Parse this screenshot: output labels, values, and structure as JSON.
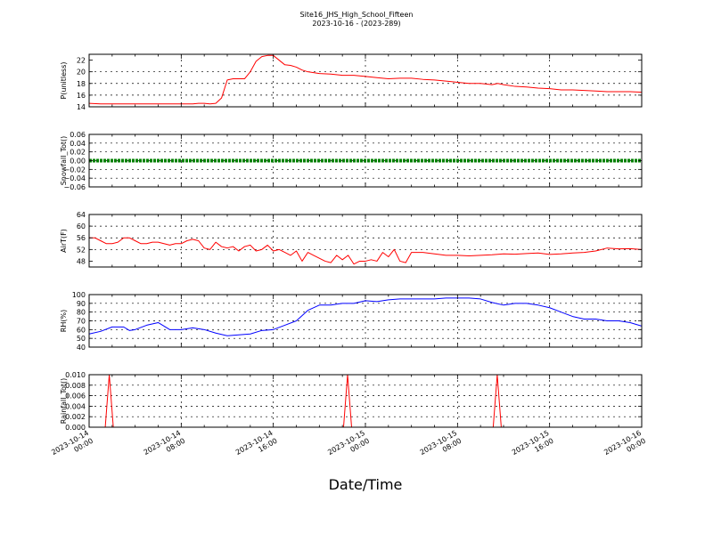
{
  "figure": {
    "title": "Site16_JHS_High_School_Fifteen",
    "subtitle": "2023-10-16 - (2023-289)",
    "xlabel": "Date/Time"
  },
  "chart_data": [
    {
      "type": "line",
      "ylabel": "P(unitless)",
      "ylim": [
        14,
        23
      ],
      "yticks": [
        14,
        16,
        18,
        20,
        22
      ],
      "ytick_labels": [
        "14",
        "16",
        "18",
        "20",
        "22"
      ],
      "grid": true,
      "series": [
        {
          "color": "#ff0000",
          "points": [
            [
              0,
              14.6
            ],
            [
              1,
              14.5
            ],
            [
              2,
              14.5
            ],
            [
              3,
              14.5
            ],
            [
              4,
              14.5
            ],
            [
              5,
              14.5
            ],
            [
              6,
              14.5
            ],
            [
              7,
              14.5
            ],
            [
              8,
              14.5
            ],
            [
              9,
              14.5
            ],
            [
              9.5,
              14.6
            ],
            [
              10,
              14.6
            ],
            [
              10.5,
              14.5
            ],
            [
              11,
              14.6
            ],
            [
              11.5,
              15.5
            ],
            [
              12,
              18.6
            ],
            [
              12.5,
              18.8
            ],
            [
              13,
              18.8
            ],
            [
              13.5,
              18.8
            ],
            [
              14,
              20.0
            ],
            [
              14.5,
              21.8
            ],
            [
              15,
              22.6
            ],
            [
              15.5,
              22.8
            ],
            [
              16,
              22.8
            ],
            [
              16.5,
              22.0
            ],
            [
              17,
              21.2
            ],
            [
              17.5,
              21.1
            ],
            [
              18,
              20.8
            ],
            [
              18.5,
              20.3
            ],
            [
              19,
              20.0
            ],
            [
              20,
              19.7
            ],
            [
              21,
              19.6
            ],
            [
              22,
              19.4
            ],
            [
              23,
              19.4
            ],
            [
              24,
              19.2
            ],
            [
              25,
              19.0
            ],
            [
              26,
              18.8
            ],
            [
              27,
              18.9
            ],
            [
              28,
              18.9
            ],
            [
              29,
              18.7
            ],
            [
              30,
              18.6
            ],
            [
              31,
              18.4
            ],
            [
              32,
              18.2
            ],
            [
              33,
              18.0
            ],
            [
              34,
              18.0
            ],
            [
              35,
              17.8
            ],
            [
              35.5,
              18.0
            ],
            [
              36,
              17.8
            ],
            [
              37,
              17.5
            ],
            [
              38,
              17.4
            ],
            [
              39,
              17.2
            ],
            [
              40,
              17.1
            ],
            [
              41,
              16.9
            ],
            [
              42,
              16.9
            ],
            [
              43,
              16.8
            ],
            [
              44,
              16.7
            ],
            [
              45,
              16.6
            ],
            [
              46,
              16.6
            ],
            [
              47,
              16.6
            ],
            [
              48,
              16.5
            ]
          ]
        }
      ]
    },
    {
      "type": "line",
      "ylabel": "Snowfall_Tot()",
      "ylim": [
        -0.06,
        0.06
      ],
      "yticks": [
        -0.06,
        -0.04,
        -0.02,
        0.0,
        0.02,
        0.04,
        0.06
      ],
      "ytick_labels": [
        "−0.06",
        "−0.04",
        "−0.02",
        "0.00",
        "0.02",
        "0.04",
        "0.06"
      ],
      "grid": true,
      "series": [
        {
          "color": "#008000",
          "points": [
            [
              0,
              0
            ],
            [
              48,
              0
            ]
          ]
        }
      ]
    },
    {
      "type": "line",
      "ylabel": "AirT(F)",
      "ylim": [
        46,
        64
      ],
      "yticks": [
        48,
        52,
        56,
        60,
        64
      ],
      "ytick_labels": [
        "48",
        "52",
        "56",
        "60",
        "64"
      ],
      "grid": true,
      "series": [
        {
          "color": "#ff0000",
          "points": [
            [
              0,
              56
            ],
            [
              0.5,
              56
            ],
            [
              1,
              55
            ],
            [
              1.5,
              54
            ],
            [
              2,
              54
            ],
            [
              2.5,
              54.5
            ],
            [
              3,
              56
            ],
            [
              3.5,
              56
            ],
            [
              4,
              55
            ],
            [
              4.5,
              54
            ],
            [
              5,
              54
            ],
            [
              5.5,
              54.5
            ],
            [
              6,
              54.5
            ],
            [
              6.5,
              54
            ],
            [
              7,
              53.5
            ],
            [
              7.5,
              54
            ],
            [
              8,
              54
            ],
            [
              8.5,
              55
            ],
            [
              9,
              55.5
            ],
            [
              9.5,
              55
            ],
            [
              10,
              52.5
            ],
            [
              10.5,
              52
            ],
            [
              11,
              54.5
            ],
            [
              11.5,
              53
            ],
            [
              12,
              52.5
            ],
            [
              12.5,
              53
            ],
            [
              13,
              51.5
            ],
            [
              13.5,
              53
            ],
            [
              14,
              53.5
            ],
            [
              14.5,
              51.5
            ],
            [
              15,
              52
            ],
            [
              15.5,
              53.5
            ],
            [
              16,
              51.5
            ],
            [
              16.5,
              52
            ],
            [
              17,
              51
            ],
            [
              17.5,
              50
            ],
            [
              18,
              51.5
            ],
            [
              18.5,
              48
            ],
            [
              19,
              51
            ],
            [
              19.5,
              50
            ],
            [
              20,
              49
            ],
            [
              20.5,
              48
            ],
            [
              21,
              47.5
            ],
            [
              21.5,
              50
            ],
            [
              22,
              48.5
            ],
            [
              22.5,
              50
            ],
            [
              23,
              47
            ],
            [
              23.5,
              48
            ],
            [
              24,
              48
            ],
            [
              24.5,
              48.5
            ],
            [
              25,
              48
            ],
            [
              25.5,
              51
            ],
            [
              26,
              49.5
            ],
            [
              26.5,
              52
            ],
            [
              27,
              48
            ],
            [
              27.5,
              47.5
            ],
            [
              28,
              51
            ],
            [
              29,
              51
            ],
            [
              30,
              50.5
            ],
            [
              31,
              50
            ],
            [
              32,
              50
            ],
            [
              33,
              49.8
            ],
            [
              34,
              50
            ],
            [
              35,
              50.2
            ],
            [
              36,
              50.5
            ],
            [
              37,
              50.4
            ],
            [
              38,
              50.6
            ],
            [
              39,
              50.8
            ],
            [
              40,
              50.3
            ],
            [
              41,
              50.5
            ],
            [
              42,
              50.8
            ],
            [
              43,
              51
            ],
            [
              44,
              51.5
            ],
            [
              45,
              52.5
            ],
            [
              46,
              52.2
            ],
            [
              47,
              52.3
            ],
            [
              48,
              52
            ]
          ]
        }
      ]
    },
    {
      "type": "line",
      "ylabel": "RH(%)",
      "ylim": [
        40,
        100
      ],
      "yticks": [
        40,
        50,
        60,
        70,
        80,
        90,
        100
      ],
      "ytick_labels": [
        "40",
        "50",
        "60",
        "70",
        "80",
        "90",
        "100"
      ],
      "grid": true,
      "series": [
        {
          "color": "#0000ff",
          "points": [
            [
              0,
              55
            ],
            [
              1,
              58
            ],
            [
              2,
              63
            ],
            [
              3,
              63
            ],
            [
              3.5,
              59
            ],
            [
              4,
              60
            ],
            [
              5,
              65
            ],
            [
              6,
              68
            ],
            [
              7,
              60
            ],
            [
              8,
              60
            ],
            [
              9,
              62
            ],
            [
              10,
              60
            ],
            [
              11,
              56
            ],
            [
              12,
              53
            ],
            [
              13,
              54
            ],
            [
              14,
              55
            ],
            [
              15,
              59
            ],
            [
              16,
              60
            ],
            [
              17,
              65
            ],
            [
              18,
              70
            ],
            [
              19,
              82
            ],
            [
              20,
              88
            ],
            [
              21,
              88
            ],
            [
              22,
              90
            ],
            [
              23,
              90
            ],
            [
              24,
              93
            ],
            [
              25,
              92
            ],
            [
              26,
              94
            ],
            [
              27,
              95
            ],
            [
              28,
              95
            ],
            [
              29,
              95
            ],
            [
              30,
              95
            ],
            [
              31,
              96
            ],
            [
              32,
              96
            ],
            [
              33,
              96
            ],
            [
              34,
              95
            ],
            [
              35,
              91
            ],
            [
              36,
              88
            ],
            [
              37,
              90
            ],
            [
              38,
              90
            ],
            [
              39,
              88
            ],
            [
              40,
              85
            ],
            [
              41,
              80
            ],
            [
              42,
              75
            ],
            [
              43,
              72
            ],
            [
              44,
              72
            ],
            [
              45,
              70
            ],
            [
              46,
              70
            ],
            [
              47,
              68
            ],
            [
              48,
              64
            ]
          ]
        }
      ]
    },
    {
      "type": "line",
      "ylabel": "Rainfall_Tot()",
      "ylim": [
        0,
        0.01
      ],
      "yticks": [
        0.0,
        0.002,
        0.004,
        0.006,
        0.008,
        0.01
      ],
      "ytick_labels": [
        "0.000",
        "0.002",
        "0.004",
        "0.006",
        "0.008",
        "0.010"
      ],
      "grid": true,
      "series": [
        {
          "color": "#ff0000",
          "points": [
            [
              0,
              0
            ],
            [
              1.4,
              0
            ],
            [
              1.75,
              0.01
            ],
            [
              2.1,
              0
            ],
            [
              22.1,
              0
            ],
            [
              22.45,
              0.01
            ],
            [
              22.8,
              0
            ],
            [
              35.1,
              0
            ],
            [
              35.45,
              0.01
            ],
            [
              35.8,
              0
            ],
            [
              48,
              0
            ]
          ]
        }
      ]
    }
  ],
  "x_axis": {
    "type": "datetime",
    "range": [
      "2023-10-14 00:00",
      "2023-10-16 00:00"
    ],
    "ticks": [
      {
        "line1": "2023-10-14",
        "line2": "00:00"
      },
      {
        "line1": "2023-10-14",
        "line2": "08:00"
      },
      {
        "line1": "2023-10-14",
        "line2": "16:00"
      },
      {
        "line1": "2023-10-15",
        "line2": "00:00"
      },
      {
        "line1": "2023-10-15",
        "line2": "08:00"
      },
      {
        "line1": "2023-10-15",
        "line2": "16:00"
      },
      {
        "line1": "2023-10-16",
        "line2": "00:00"
      }
    ]
  }
}
